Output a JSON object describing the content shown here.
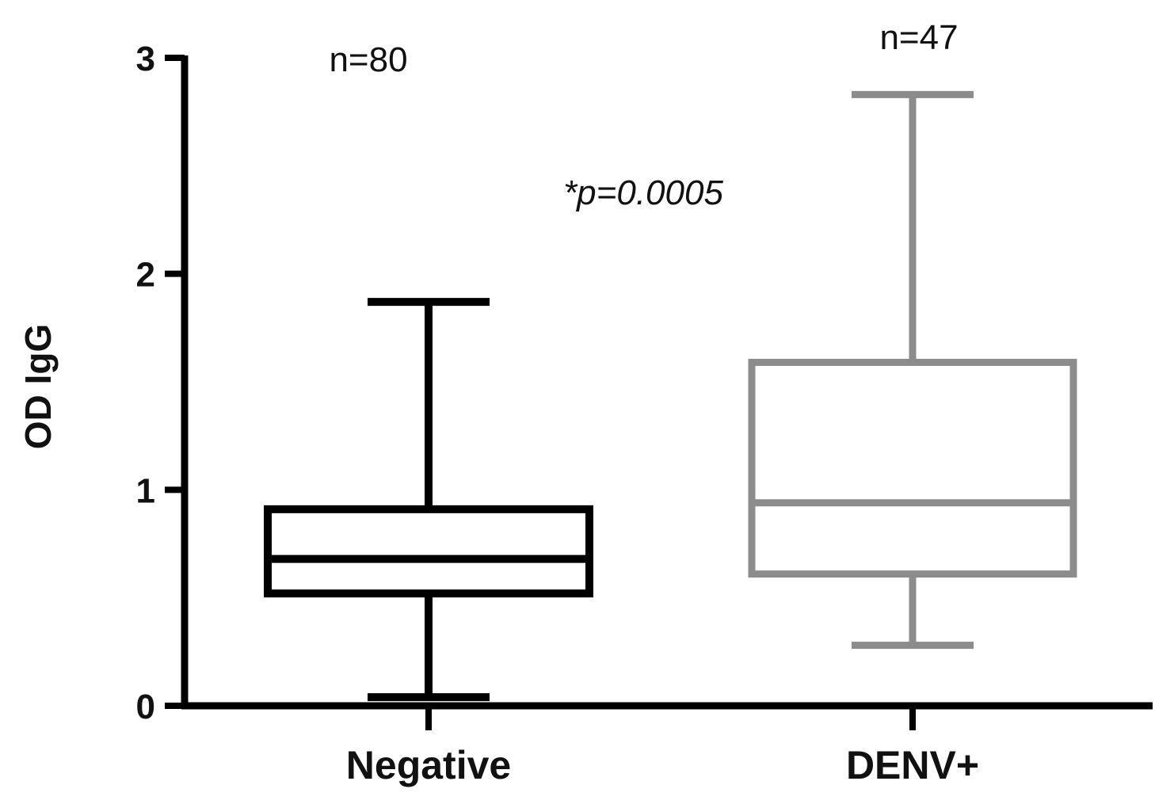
{
  "chart_data": {
    "type": "box",
    "title": "",
    "xlabel": "",
    "ylabel": "OD IgG",
    "ylim": [
      0,
      3
    ],
    "yticks": [
      0,
      1,
      2,
      3
    ],
    "ytick_labels": [
      "0",
      "1",
      "2",
      "3"
    ],
    "grid": false,
    "categories": [
      "Negative",
      "DENV+"
    ],
    "boxes": [
      {
        "category": "Negative",
        "min": 0.04,
        "q1": 0.52,
        "median": 0.68,
        "q3": 0.91,
        "max": 1.87,
        "n_label": "n=80",
        "color": "#000000"
      },
      {
        "category": "DENV+",
        "min": 0.28,
        "q1": 0.61,
        "median": 0.94,
        "q3": 1.59,
        "max": 2.83,
        "n_label": "n=47",
        "color": "#8c8c8c"
      }
    ],
    "annotations": [
      "*p=0.0005"
    ]
  }
}
